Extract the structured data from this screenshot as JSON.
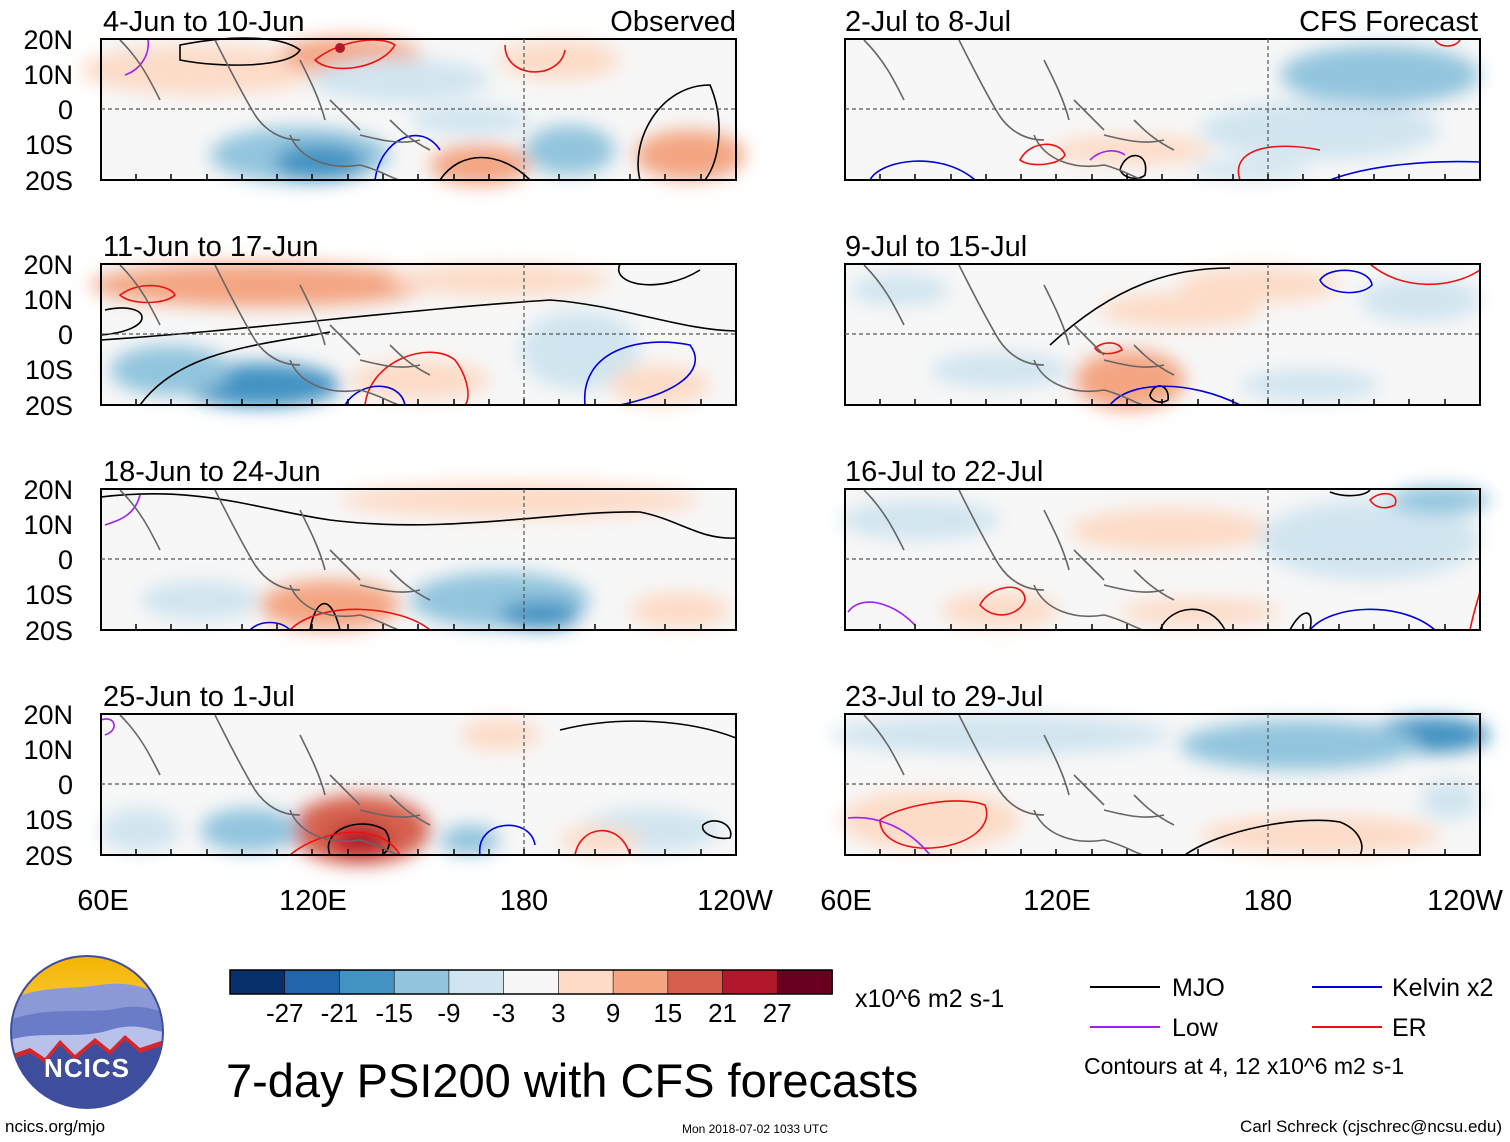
{
  "product_title": "7-day PSI200 with CFS forecasts",
  "columns": {
    "left_label": "Observed",
    "right_label": "CFS Forecast"
  },
  "axes": {
    "lat_labels": [
      "20N",
      "10N",
      "0",
      "10S",
      "20S"
    ],
    "lon_labels": [
      "60E",
      "120E",
      "180",
      "120W"
    ]
  },
  "panels": {
    "left": [
      {
        "period": "4-Jun to 10-Jun"
      },
      {
        "period": "11-Jun to 17-Jun"
      },
      {
        "period": "18-Jun to 24-Jun"
      },
      {
        "period": "25-Jun to 1-Jul"
      }
    ],
    "right": [
      {
        "period": "2-Jul to 8-Jul"
      },
      {
        "period": "9-Jul to 15-Jul"
      },
      {
        "period": "16-Jul to 22-Jul"
      },
      {
        "period": "23-Jul to 29-Jul"
      }
    ]
  },
  "colorbar": {
    "colors": [
      "#08306b",
      "#2166ac",
      "#4393c3",
      "#92c5de",
      "#d1e5f0",
      "#f7f7f7",
      "#fddbc7",
      "#f4a582",
      "#d6604d",
      "#b2182b",
      "#67001f"
    ],
    "tick_labels": [
      "-27",
      "-21",
      "-15",
      "-9",
      "-3",
      "3",
      "9",
      "15",
      "21",
      "27"
    ],
    "units": "x10^6 m2 s-1"
  },
  "legend": {
    "items": [
      {
        "label": "MJO",
        "color": "#000000"
      },
      {
        "label": "Kelvin x2",
        "color": "#0000dd"
      },
      {
        "label": "Low",
        "color": "#a020f0"
      },
      {
        "label": "ER",
        "color": "#ee1111"
      }
    ],
    "contour_note": "Contours at 4, 12 x10^6 m2 s-1"
  },
  "logo": {
    "text": "NCICS"
  },
  "footer": {
    "url": "ncics.org/mjo",
    "timestamp": "Mon 2018-07-02 1033 UTC",
    "credit": "Carl Schreck (cjschrec@ncsu.edu)"
  }
}
